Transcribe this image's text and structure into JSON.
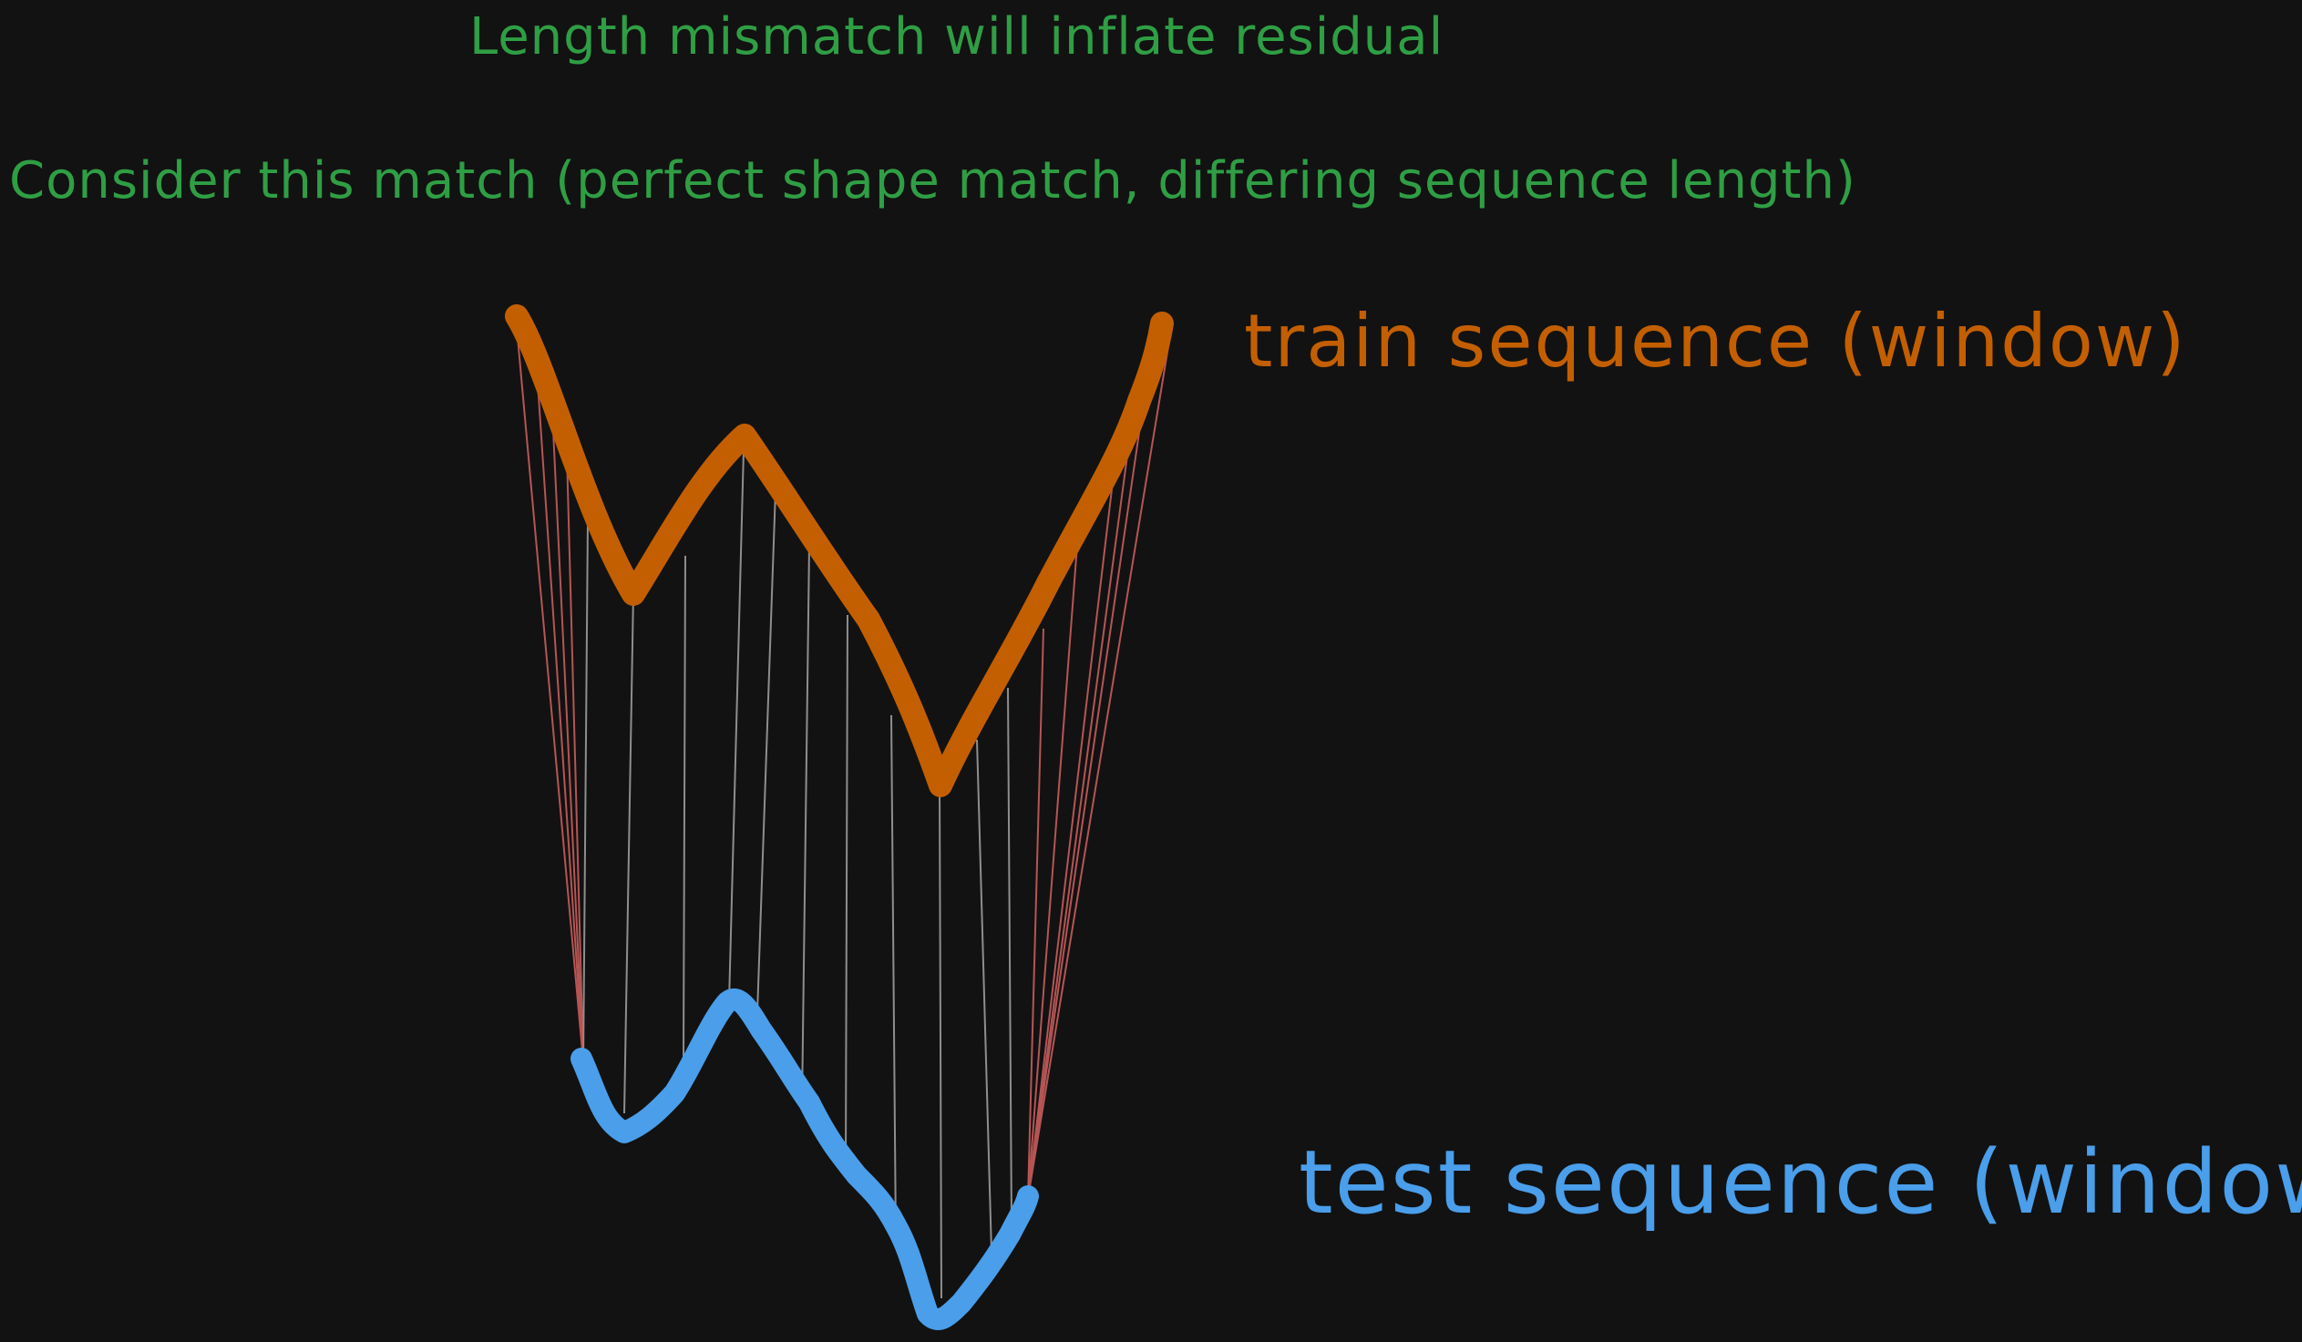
{
  "notes": {
    "top": "Length mismatch will inflate residual",
    "main": "Consider this match (perfect shape match, differing sequence length)"
  },
  "labels": {
    "train": "train sequence (window)",
    "test": "test sequence (window)"
  },
  "colors": {
    "background": "#121212",
    "note": "#2f9e44",
    "train": "#c35f00",
    "test": "#4a9eea",
    "link_gray": "#b8b8b8",
    "link_red": "#e06666"
  }
}
